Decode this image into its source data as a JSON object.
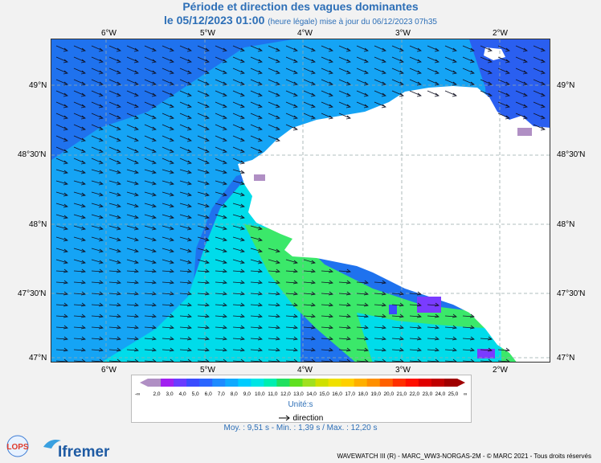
{
  "header": {
    "title": "Période et direction des vagues dominantes",
    "date": "le 05/12/2023 01:00",
    "note": "(heure légale) mise à jour du 06/12/2023 07h35"
  },
  "axes": {
    "lon_labels": [
      "6°W",
      "5°W",
      "4°W",
      "3°W",
      "2°W"
    ],
    "lat_labels": [
      "49°N",
      "48°30'N",
      "48°N",
      "47°30'N",
      "47°N"
    ]
  },
  "legend": {
    "ticks": [
      "2,0",
      "3,0",
      "4,0",
      "5,0",
      "6,0",
      "7,0",
      "8,0",
      "9,0",
      "10,0",
      "11,0",
      "12,0",
      "13,0",
      "14,0",
      "15,0",
      "16,0",
      "17,0",
      "18,0",
      "19,0",
      "20,0",
      "21,0",
      "22,0",
      "23,0",
      "24,0",
      "25,0"
    ],
    "colors": [
      "#b08fc4",
      "#a020f0",
      "#6a3cff",
      "#3a4cff",
      "#2a66ff",
      "#1e8bff",
      "#10aaff",
      "#00ccff",
      "#00e5e5",
      "#00eeb0",
      "#20e060",
      "#60e020",
      "#a0e020",
      "#d0e000",
      "#f0e000",
      "#ffd000",
      "#ffb000",
      "#ff9000",
      "#ff6000",
      "#ff3000",
      "#ff1000",
      "#e00000",
      "#c00000",
      "#a00000"
    ],
    "low_symbol": "-∞",
    "high_symbol": "∞",
    "units": "Unité:s",
    "direction_label": "direction"
  },
  "stats": {
    "text": "Moy. : 9,51 s   -   Min. : 1,39 s / Max. : 12,20 s"
  },
  "footer": {
    "credit": "WAVEWATCH III (R) - MARC_WW3-NORGAS-2M - © MARC 2021 - Tous droits réservés",
    "lops": "LOPS",
    "ifremer": "Ifremer"
  },
  "colors": {
    "land": "#ffffff",
    "deep_blue": "#1f72ee",
    "mid_blue": "#15a4f5",
    "cyan": "#00dcea",
    "green": "#3be86a",
    "purple": "#7a3cff"
  }
}
